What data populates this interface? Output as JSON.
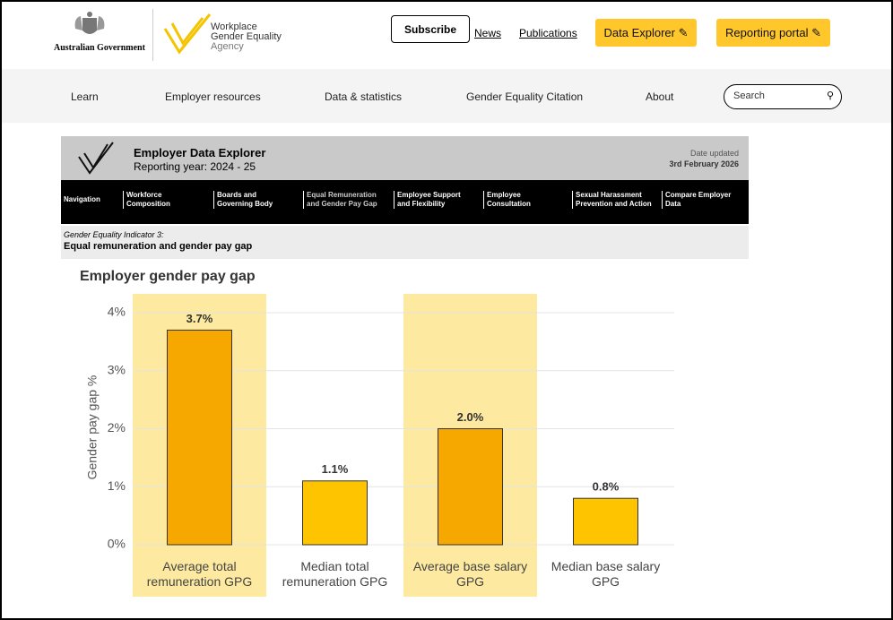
{
  "header": {
    "government": "Australian Government",
    "agency": [
      "Workplace",
      "Gender Equality",
      "Agency"
    ],
    "subscribe": "Subscribe",
    "links": [
      "News",
      "Publications"
    ],
    "buttons": [
      "Data Explorer",
      "Reporting portal"
    ]
  },
  "nav": {
    "items": [
      "Learn",
      "Employer resources",
      "Data & statistics",
      "Gender Equality Citation",
      "About"
    ],
    "search": "Search"
  },
  "explorer": {
    "title": "Employer Data Explorer",
    "reporting_year": "Reporting year: 2024 - 25",
    "date_label": "Date updated",
    "date": "3rd February 2026",
    "tabs": [
      [
        "Navigation"
      ],
      [
        "Workforce",
        "Composition"
      ],
      [
        "Boards and",
        "Governing Body"
      ],
      [
        "Equal Remuneration",
        "and Gender Pay Gap"
      ],
      [
        "Employee Support",
        "and Flexibility"
      ],
      [
        "Employee",
        "Consultation"
      ],
      [
        "Sexual Harassment",
        "Prevention and Action"
      ],
      [
        "Compare Employer",
        "Data"
      ]
    ],
    "indicator_label": "Gender Equality Indicator 3:",
    "indicator_title": "Equal remuneration and gender pay gap"
  },
  "chart_data": {
    "type": "bar",
    "title": "Employer gender pay gap",
    "y_label": "Gender pay gap %",
    "categories": [
      "Average total remuneration GPG",
      "Median total remuneration GPG",
      "Average base salary GPG",
      "Median base salary GPG"
    ],
    "values": [
      3.7,
      1.1,
      2.0,
      0.8
    ],
    "value_labels": [
      "3.7%",
      "1.1%",
      "2.0%",
      "0.8%"
    ],
    "colors": [
      "#f7a800",
      "#ffc400",
      "#f7a800",
      "#ffc400"
    ],
    "highlighted_categories": [
      0,
      2
    ],
    "highlight_color": "#fdeaa0",
    "ylim": [
      0,
      4
    ],
    "yticks": [
      {
        "value": 0,
        "label": "0%"
      },
      {
        "value": 1,
        "label": "1%"
      },
      {
        "value": 2,
        "label": "2%"
      },
      {
        "value": 3,
        "label": "3%"
      },
      {
        "value": 4,
        "label": "4%"
      }
    ],
    "grid": true
  }
}
